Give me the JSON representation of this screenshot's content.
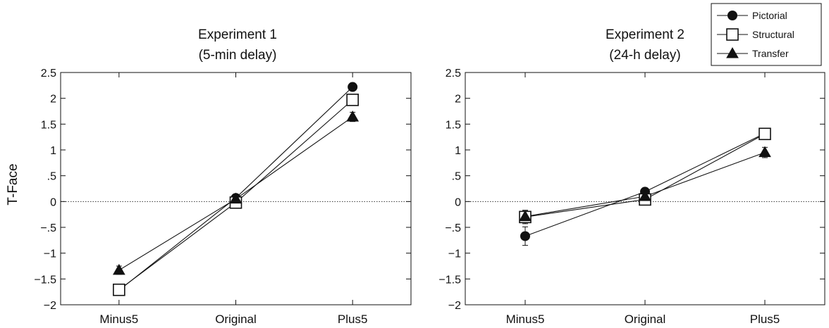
{
  "ylabel": "T-Face",
  "legend": {
    "entries": [
      {
        "label": "Pictorial",
        "marker": "circle"
      },
      {
        "label": "Structural",
        "marker": "square"
      },
      {
        "label": "Transfer",
        "marker": "triangle"
      }
    ]
  },
  "chart_data": [
    {
      "type": "line",
      "title": "Experiment 1",
      "subtitle": "(5-min delay)",
      "ylabel": "T-Face",
      "categories": [
        "Minus5",
        "Original",
        "Plus5"
      ],
      "ylim": [
        -2,
        2.5
      ],
      "yticks": [
        2.5,
        2,
        1.5,
        1,
        0.5,
        0,
        -0.5,
        -1,
        -1.5,
        -2
      ],
      "yticklabels": [
        "2.5",
        "2",
        "1.5",
        "1",
        ".5",
        "0",
        "−.5",
        "−1",
        "−1.5",
        "−2"
      ],
      "reference_line": 0,
      "series": [
        {
          "name": "Pictorial",
          "marker": "circle",
          "values": [
            -1.72,
            0.07,
            2.22
          ],
          "errors": [
            0.07,
            0.06,
            0.06
          ]
        },
        {
          "name": "Structural",
          "marker": "square",
          "values": [
            -1.71,
            -0.02,
            1.97
          ],
          "errors": [
            0.08,
            0.05,
            0.09
          ]
        },
        {
          "name": "Transfer",
          "marker": "triangle",
          "values": [
            -1.33,
            0.05,
            1.64
          ],
          "errors": [
            0.08,
            0.05,
            0.09
          ]
        }
      ]
    },
    {
      "type": "line",
      "title": "Experiment 2",
      "subtitle": "(24-h delay)",
      "ylabel": "",
      "categories": [
        "Minus5",
        "Original",
        "Plus5"
      ],
      "ylim": [
        -2,
        2.5
      ],
      "yticks": [
        2.5,
        2,
        1.5,
        1,
        0.5,
        0,
        -0.5,
        -1,
        -1.5,
        -2
      ],
      "yticklabels": [
        "2.5",
        "2",
        "1.5",
        "1",
        ".5",
        "0",
        "−.5",
        "−1",
        "−1.5",
        "−2"
      ],
      "reference_line": 0,
      "series": [
        {
          "name": "Pictorial",
          "marker": "circle",
          "values": [
            -0.67,
            0.19,
            1.32
          ],
          "errors": [
            0.18,
            0.06,
            0.1
          ]
        },
        {
          "name": "Structural",
          "marker": "square",
          "values": [
            -0.3,
            0.04,
            1.31
          ],
          "errors": [
            0.13,
            0.06,
            0.1
          ]
        },
        {
          "name": "Transfer",
          "marker": "triangle",
          "values": [
            -0.29,
            0.1,
            0.95
          ],
          "errors": [
            0.12,
            0.06,
            0.1
          ]
        }
      ]
    }
  ]
}
